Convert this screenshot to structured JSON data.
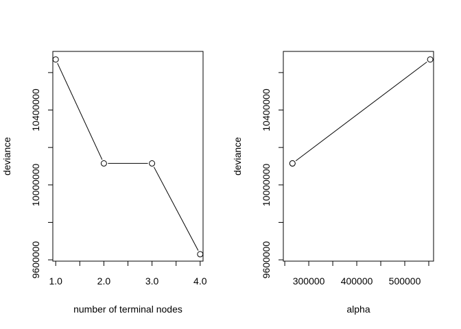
{
  "chart_data": [
    {
      "type": "line",
      "title": "",
      "xlabel": "number of terminal nodes",
      "ylabel": "deviance",
      "x_ticks": [
        1.0,
        1.5,
        2.0,
        2.5,
        3.0,
        3.5,
        4.0
      ],
      "x_tick_labels": [
        "1.0",
        "2.0",
        "3.0",
        "4.0"
      ],
      "x_tick_label_values": [
        1.0,
        2.0,
        3.0,
        4.0
      ],
      "y_ticks": [
        9600000,
        9800000,
        10000000,
        10200000,
        10400000,
        10600000
      ],
      "y_tick_labels": [
        "9600000",
        "10000000",
        "10400000"
      ],
      "y_tick_label_values": [
        9600000,
        10000000,
        10400000
      ],
      "xlim": [
        0.94,
        4.06
      ],
      "ylim": [
        9593000,
        10713000
      ],
      "x": [
        1,
        2,
        3,
        4
      ],
      "y": [
        10670000,
        10115000,
        10115000,
        9630000
      ],
      "point_style": "open-circle",
      "grid": false,
      "legend": "none"
    },
    {
      "type": "line",
      "title": "",
      "xlabel": "alpha",
      "ylabel": "deviance",
      "x_ticks": [
        250000,
        300000,
        350000,
        400000,
        450000,
        500000,
        550000
      ],
      "x_tick_labels": [
        "300000",
        "400000",
        "500000"
      ],
      "x_tick_label_values": [
        300000,
        400000,
        500000
      ],
      "y_ticks": [
        9600000,
        9800000,
        10000000,
        10200000,
        10400000,
        10600000
      ],
      "y_tick_labels": [
        "9600000",
        "10000000",
        "10400000"
      ],
      "y_tick_label_values": [
        9600000,
        10000000,
        10400000
      ],
      "xlim": [
        247000,
        560000
      ],
      "ylim": [
        9593000,
        10713000
      ],
      "x": [
        553000,
        266000,
        266000
      ],
      "y": [
        10670000,
        10115000,
        10115000
      ],
      "point_style": "open-circle",
      "grid": false,
      "legend": "none"
    }
  ]
}
